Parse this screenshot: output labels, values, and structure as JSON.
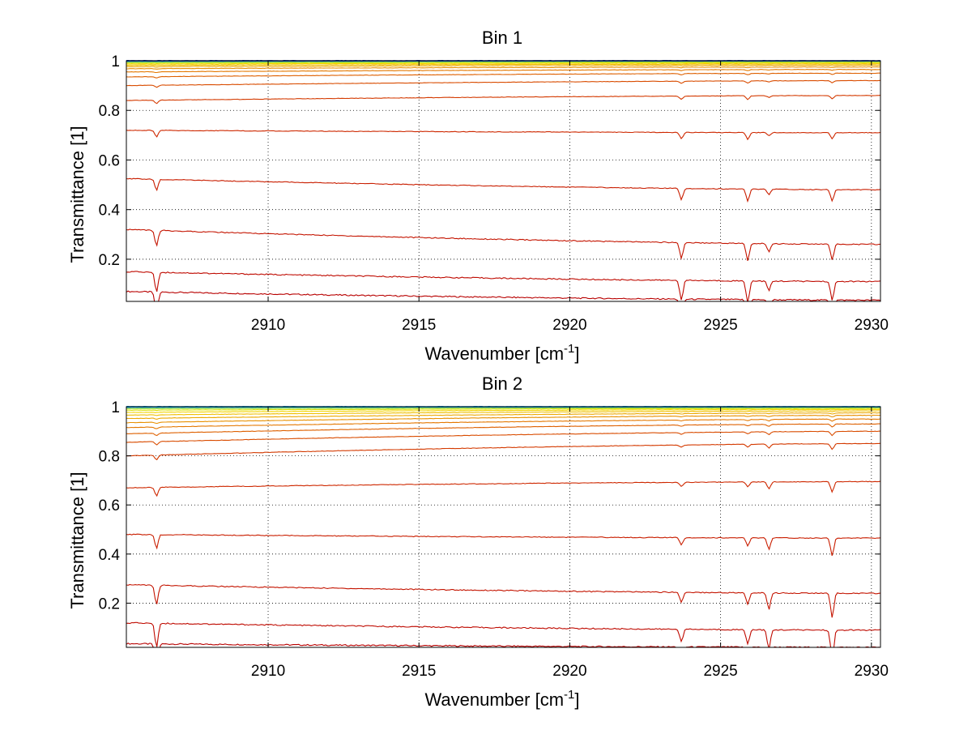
{
  "chart_data": [
    {
      "type": "line",
      "title": "Bin 1",
      "xlabel_main": "Wavenumber [cm",
      "xlabel_sup": "-1",
      "xlabel_end": "]",
      "ylabel": "Transmittance [1]",
      "xlim": [
        2905.3,
        2930.3
      ],
      "ylim": [
        0.03,
        1.0
      ],
      "xticks": [
        2910,
        2915,
        2920,
        2925,
        2930
      ],
      "xtick_labels": [
        "2910",
        "2915",
        "2920",
        "2925",
        "2930"
      ],
      "yticks": [
        0.2,
        0.4,
        0.6,
        0.8,
        1.0
      ],
      "ytick_labels": [
        "0.2",
        "0.4",
        "0.6",
        "0.8",
        "1"
      ],
      "grid": true,
      "colormap": "jet",
      "line_dips": [
        {
          "x": 2906.3,
          "weight": 1.0
        },
        {
          "x": 2923.7,
          "weight": 1.0
        },
        {
          "x": 2925.9,
          "weight": 1.1
        },
        {
          "x": 2926.6,
          "weight": 0.5
        },
        {
          "x": 2928.7,
          "weight": 1.0
        }
      ],
      "series": [
        {
          "color": "#b80000",
          "start": 0.07,
          "end": 0.035
        },
        {
          "color": "#bf0a00",
          "start": 0.15,
          "end": 0.11
        },
        {
          "color": "#c41400",
          "start": 0.32,
          "end": 0.26
        },
        {
          "color": "#c91e00",
          "start": 0.525,
          "end": 0.48
        },
        {
          "color": "#ce2800",
          "start": 0.72,
          "end": 0.71
        },
        {
          "color": "#d43a00",
          "start": 0.84,
          "end": 0.86
        },
        {
          "color": "#d94c00",
          "start": 0.9,
          "end": 0.92
        },
        {
          "color": "#de6000",
          "start": 0.935,
          "end": 0.95
        },
        {
          "color": "#e47800",
          "start": 0.955,
          "end": 0.965
        },
        {
          "color": "#e89000",
          "start": 0.968,
          "end": 0.975
        },
        {
          "color": "#eca800",
          "start": 0.976,
          "end": 0.982
        },
        {
          "color": "#efbf00",
          "start": 0.982,
          "end": 0.987
        },
        {
          "color": "#f2d400",
          "start": 0.987,
          "end": 0.991
        },
        {
          "color": "#d8e000",
          "start": 0.991,
          "end": 0.994
        },
        {
          "color": "#a8e040",
          "start": 0.994,
          "end": 0.996
        },
        {
          "color": "#50c8a0",
          "start": 0.996,
          "end": 0.998
        },
        {
          "color": "#1f8fd0",
          "start": 0.998,
          "end": 0.999
        },
        {
          "color": "#0030b0",
          "start": 1.0,
          "end": 1.0
        }
      ]
    },
    {
      "type": "line",
      "title": "Bin 2",
      "xlabel_main": "Wavenumber [cm",
      "xlabel_sup": "-1",
      "xlabel_end": "]",
      "ylabel": "Transmittance [1]",
      "xlim": [
        2905.3,
        2930.3
      ],
      "ylim": [
        0.02,
        1.0
      ],
      "xticks": [
        2910,
        2915,
        2920,
        2925,
        2930
      ],
      "xtick_labels": [
        "2910",
        "2915",
        "2920",
        "2925",
        "2930"
      ],
      "yticks": [
        0.2,
        0.4,
        0.6,
        0.8,
        1.0
      ],
      "ytick_labels": [
        "0.2",
        "0.4",
        "0.6",
        "0.8",
        "1"
      ],
      "grid": true,
      "colormap": "jet",
      "line_dips": [
        {
          "x": 2906.3,
          "weight": 1.2
        },
        {
          "x": 2923.7,
          "weight": 0.6
        },
        {
          "x": 2925.9,
          "weight": 0.7
        },
        {
          "x": 2926.6,
          "weight": 1.0
        },
        {
          "x": 2928.7,
          "weight": 1.5
        }
      ],
      "series": [
        {
          "color": "#b80000",
          "start": 0.035,
          "end": 0.02
        },
        {
          "color": "#bf0a00",
          "start": 0.12,
          "end": 0.09
        },
        {
          "color": "#c41400",
          "start": 0.275,
          "end": 0.24
        },
        {
          "color": "#c91e00",
          "start": 0.48,
          "end": 0.465
        },
        {
          "color": "#ce2800",
          "start": 0.67,
          "end": 0.695
        },
        {
          "color": "#d43a00",
          "start": 0.8,
          "end": 0.85
        },
        {
          "color": "#d94c00",
          "start": 0.855,
          "end": 0.9
        },
        {
          "color": "#de6000",
          "start": 0.89,
          "end": 0.93
        },
        {
          "color": "#e47800",
          "start": 0.915,
          "end": 0.95
        },
        {
          "color": "#e89000",
          "start": 0.935,
          "end": 0.965
        },
        {
          "color": "#eca800",
          "start": 0.952,
          "end": 0.975
        },
        {
          "color": "#efbf00",
          "start": 0.966,
          "end": 0.983
        },
        {
          "color": "#f2d400",
          "start": 0.977,
          "end": 0.989
        },
        {
          "color": "#d8e000",
          "start": 0.986,
          "end": 0.993
        },
        {
          "color": "#a8e040",
          "start": 0.992,
          "end": 0.996
        },
        {
          "color": "#50c8a0",
          "start": 0.996,
          "end": 0.998
        },
        {
          "color": "#1f8fd0",
          "start": 0.998,
          "end": 0.999
        },
        {
          "color": "#00a0e0",
          "start": 1.0,
          "end": 1.0
        }
      ]
    }
  ]
}
